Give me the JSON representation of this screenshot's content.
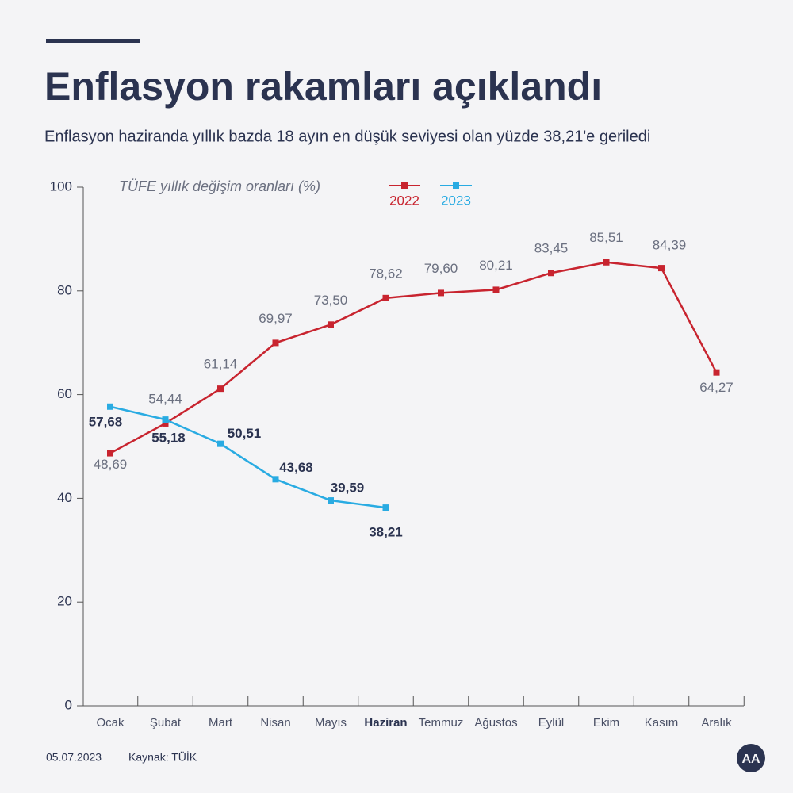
{
  "header": {
    "title": "Enflasyon rakamları açıklandı",
    "subtitle": "Enflasyon haziranda yıllık bazda 18 ayın en düşük seviyesi olan yüzde 38,21'e geriledi"
  },
  "chart_data": {
    "type": "line",
    "y_axis_label": "TÜFE yıllık değişim oranları (%)",
    "categories": [
      "Ocak",
      "Şubat",
      "Mart",
      "Nisan",
      "Mayıs",
      "Haziran",
      "Temmuz",
      "Ağustos",
      "Eylül",
      "Ekim",
      "Kasım",
      "Aralık"
    ],
    "series": [
      {
        "name": "2022",
        "color": "#c8242f",
        "values": [
          48.69,
          54.44,
          61.14,
          69.97,
          73.5,
          78.62,
          79.6,
          80.21,
          83.45,
          85.51,
          84.39,
          64.27
        ],
        "value_labels": [
          "48,69",
          "54,44",
          "61,14",
          "69,97",
          "73,50",
          "78,62",
          "79,60",
          "80,21",
          "83,45",
          "85,51",
          "84,39",
          "64,27"
        ]
      },
      {
        "name": "2023",
        "color": "#29abe2",
        "values": [
          57.68,
          55.18,
          50.51,
          43.68,
          39.59,
          38.21,
          null,
          null,
          null,
          null,
          null,
          null
        ],
        "value_labels": [
          "57,68",
          "55,18",
          "50,51",
          "43,68",
          "39,59",
          "38,21",
          null,
          null,
          null,
          null,
          null,
          null
        ]
      }
    ],
    "ylim": [
      0,
      100
    ],
    "yticks": [
      0,
      20,
      40,
      60,
      80,
      100
    ]
  },
  "footer": {
    "date": "05.07.2023",
    "source": "Kaynak: TÜİK"
  }
}
